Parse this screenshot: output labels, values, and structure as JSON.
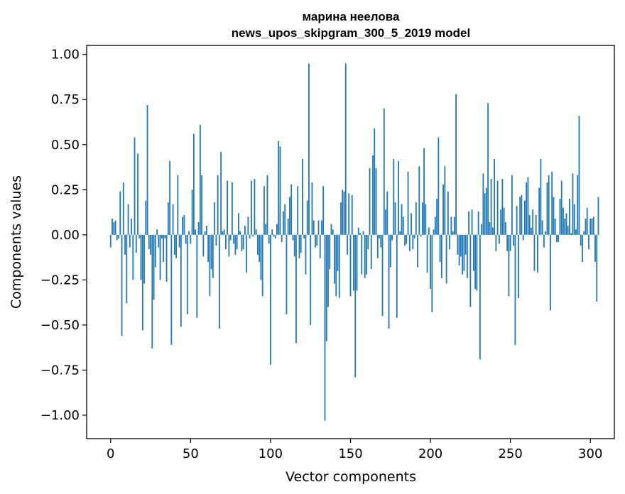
{
  "chart_data": {
    "type": "bar",
    "title_line1": "марина неелова",
    "title_line2": "news_upos_skipgram_300_5_2019 model",
    "xlabel": "Vector components",
    "ylabel": "Components values",
    "xlim": [
      -15,
      315
    ],
    "ylim": [
      -1.13,
      1.05
    ],
    "x_ticks": [
      0,
      50,
      100,
      150,
      200,
      250,
      300
    ],
    "x_tick_labels": [
      "0",
      "50",
      "100",
      "150",
      "200",
      "250",
      "300"
    ],
    "y_ticks": [
      1.0,
      0.75,
      0.5,
      0.25,
      0.0,
      -0.25,
      -0.5,
      -0.75,
      -1.0
    ],
    "y_tick_labels": [
      "1.00",
      "0.75",
      "0.50",
      "0.25",
      "0.00",
      "−0.25",
      "−0.50",
      "−0.75",
      "−1.00"
    ],
    "bar_color": "#1f77b4",
    "values": [
      -0.07,
      0.09,
      0.07,
      0.08,
      -0.03,
      -0.02,
      0.24,
      -0.56,
      0.29,
      -0.11,
      -0.38,
      0.17,
      -0.07,
      0.09,
      -0.25,
      0.54,
      -0.1,
      0.45,
      -0.02,
      -0.25,
      -0.53,
      -0.27,
      0.19,
      0.72,
      -0.08,
      -0.11,
      -0.63,
      -0.36,
      -0.18,
      0.03,
      -0.07,
      -0.25,
      -0.02,
      -0.15,
      -0.02,
      -0.26,
      0.18,
      0.41,
      -0.61,
      0.17,
      -0.11,
      -0.13,
      0.33,
      -0.07,
      -0.51,
      0.1,
      0.11,
      -0.05,
      -0.44,
      0.02,
      -0.05,
      0.25,
      0.56,
      0.03,
      -0.46,
      0.07,
      0.61,
      0.33,
      -0.12,
      0.02,
      0.05,
      -0.15,
      -0.34,
      -0.19,
      -0.24,
      0.18,
      -0.06,
      0.33,
      -0.52,
      0.46,
      0.02,
      0.03,
      -0.08,
      0.3,
      -0.12,
      -0.03,
      0.29,
      -0.05,
      -0.11,
      -0.08,
      0.12,
      0.02,
      -0.09,
      -0.08,
      0.05,
      -0.21,
      0.1,
      -0.02,
      0.3,
      -0.01,
      0.31,
      0.03,
      -0.11,
      -0.15,
      -0.25,
      -0.34,
      0.27,
      0.06,
      0.33,
      -0.05,
      -0.72,
      0.03,
      -0.01,
      -0.02,
      0.06,
      0.52,
      0.49,
      -0.04,
      0.13,
      0.17,
      -0.44,
      0.09,
      0.21,
      0.28,
      -0.03,
      -0.12,
      -0.6,
      0.27,
      -0.13,
      -0.1,
      0.42,
      -0.02,
      -0.22,
      0.19,
      0.95,
      -0.5,
      0.29,
      0.08,
      -0.07,
      -0.06,
      0.08,
      -0.13,
      0.08,
      0.27,
      -1.03,
      -0.59,
      -0.4,
      -0.19,
      0.06,
      0.03,
      -0.27,
      -0.34,
      -0.2,
      -0.35,
      0.18,
      0.25,
      0.24,
      0.95,
      -0.11,
      0.23,
      -0.34,
      0.22,
      -0.31,
      -0.79,
      -0.31,
      0.04,
      0.01,
      -0.22,
      0.02,
      -0.24,
      -0.22,
      -0.08,
      0.37,
      -0.19,
      0.44,
      0.59,
      0.37,
      -0.13,
      -0.02,
      -0.07,
      -0.45,
      0.7,
      0.14,
      0.24,
      -0.52,
      -0.18,
      -0.03,
      0.42,
      0.18,
      -0.46,
      0.41,
      0.02,
      0.17,
      0.1,
      -0.06,
      -0.05,
      0.35,
      -0.09,
      0.12,
      -0.08,
      -0.02,
      0.18,
      -0.18,
      0.38,
      -0.01,
      0.18,
      0.48,
      0.17,
      -0.21,
      0.04,
      -0.3,
      -0.43,
      0.03,
      0.1,
      0.2,
      0.54,
      -0.15,
      -0.24,
      0.28,
      0.38,
      -0.27,
      0.24,
      -0.08,
      0.1,
      0.02,
      0.1,
      0.78,
      -0.11,
      -0.17,
      -0.12,
      -0.22,
      -0.2,
      -0.11,
      -0.24,
      0.13,
      -0.4,
      0.14,
      -0.2,
      -0.3,
      -0.31,
      0.13,
      -0.69,
      0.06,
      0.34,
      0.23,
      0.26,
      0.73,
      0.07,
      0.31,
      0.04,
      0.42,
      -0.09,
      0.3,
      -0.05,
      0.14,
      0.31,
      0.15,
      0.07,
      -0.09,
      -0.34,
      -0.09,
      0.33,
      -0.06,
      -0.61,
      0.16,
      -0.35,
      0.21,
      0.22,
      -0.03,
      0.19,
      0.29,
      0.32,
      0.11,
      0.04,
      0.14,
      -0.2,
      0.11,
      -0.21,
      0.26,
      0.42,
      0.08,
      -0.07,
      0.02,
      0.29,
      0.33,
      -0.42,
      0.35,
      0.21,
      0.09,
      -0.04,
      -0.04,
      0.2,
      0.3,
      0.15,
      0.09,
      0.12,
      0.05,
      0.2,
      0.01,
      0.34,
      0.17,
      0.03,
      0.33,
      0.66,
      -0.06,
      -0.15,
      0.02,
      0.09,
      0.15,
      -0.08,
      0.09,
      0.09,
      0.1,
      -0.15,
      -0.37,
      0.21
    ]
  }
}
